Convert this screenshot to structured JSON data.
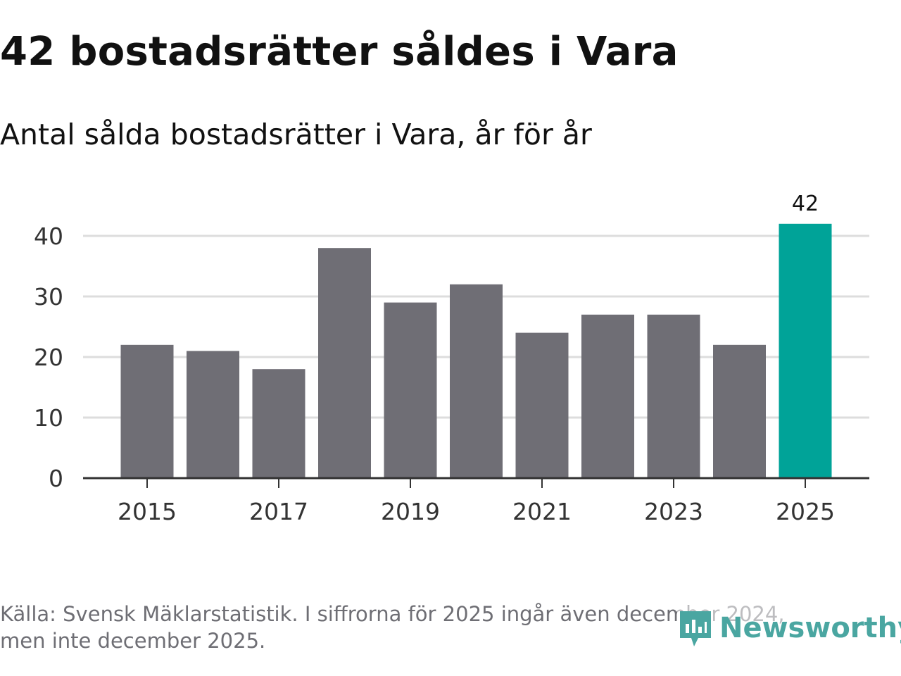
{
  "title": "42 bostadsrätter såldes i Vara",
  "subtitle": "Antal sålda bostadsrätter i Vara, år för år",
  "source_line1": "Källa: Svensk Mäklarstatistik. I siffrorna för 2025 ingår även december 2024,",
  "source_line2": "men inte december 2025.",
  "brand": "Newsworthy",
  "colors": {
    "bar": "#6f6e75",
    "highlight": "#00a398",
    "grid": "#dddddd",
    "axis": "#333333",
    "brand": "#4aa6a1"
  },
  "chart_data": {
    "type": "bar",
    "title": "42 bostadsrätter såldes i Vara",
    "subtitle": "Antal sålda bostadsrätter i Vara, år för år",
    "xlabel": "",
    "ylabel": "",
    "categories": [
      "2015",
      "2016",
      "2017",
      "2018",
      "2019",
      "2020",
      "2021",
      "2022",
      "2023",
      "2024",
      "2025"
    ],
    "values": [
      22,
      21,
      18,
      38,
      29,
      32,
      24,
      27,
      27,
      22,
      42
    ],
    "highlight_index": 10,
    "data_labels": [
      {
        "index": 10,
        "text": "42"
      }
    ],
    "x_tick_labels": [
      "2015",
      "2017",
      "2019",
      "2021",
      "2023",
      "2025"
    ],
    "y_ticks": [
      0,
      10,
      20,
      30,
      40
    ],
    "ylim": [
      0,
      42
    ],
    "grid": true
  }
}
